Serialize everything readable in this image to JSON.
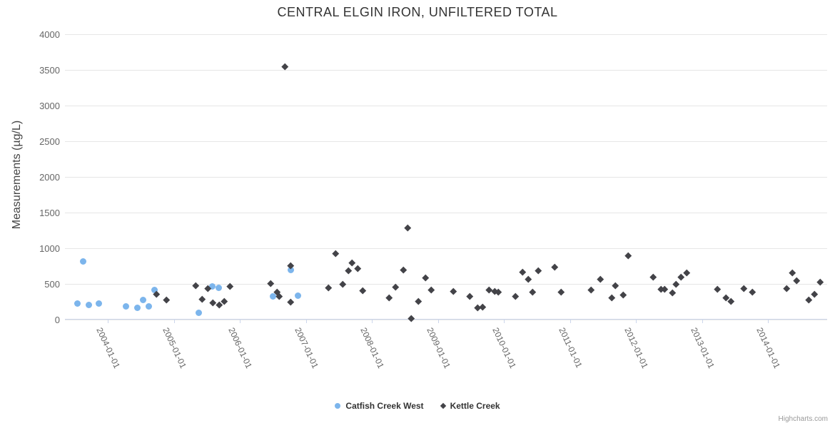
{
  "credit": "Highcharts.com",
  "colors": {
    "catfish_creek_west": "#7cb5ec",
    "kettle_creek": "#434348",
    "grid": "#e6e6e6",
    "axis_line": "#ccd6eb",
    "axis_label": "#666666",
    "title": "#333333",
    "legend_text": "#333333",
    "credit_text": "#999999",
    "background": "#ffffff"
  },
  "chart_data": {
    "type": "scatter",
    "title": "CENTRAL ELGIN IRON, UNFILTERED TOTAL",
    "xlabel": "",
    "ylabel": "Measurements (µg/L)",
    "ylim": [
      0,
      4000
    ],
    "yticks": [
      0,
      500,
      1000,
      1500,
      2000,
      2500,
      3000,
      3500,
      4000
    ],
    "x_tick_labels": [
      "2004-01-01",
      "2005-01-01",
      "2006-01-01",
      "2007-01-01",
      "2008-01-01",
      "2009-01-01",
      "2010-01-01",
      "2011-01-01",
      "2012-01-01",
      "2013-01-01",
      "2014-01-01"
    ],
    "x_tick_years": [
      2004,
      2005,
      2006,
      2007,
      2008,
      2009,
      2010,
      2011,
      2012,
      2013,
      2014
    ],
    "xlim_years": [
      2003.35,
      2014.95
    ],
    "grid": true,
    "legend_position": "bottom-center",
    "series": [
      {
        "name": "Catfish Creek West",
        "color": "#7cb5ec",
        "marker": "circle",
        "points": [
          [
            2003.54,
            230
          ],
          [
            2003.63,
            820
          ],
          [
            2003.71,
            205
          ],
          [
            2003.86,
            230
          ],
          [
            2004.28,
            190
          ],
          [
            2004.45,
            170
          ],
          [
            2004.54,
            280
          ],
          [
            2004.62,
            185
          ],
          [
            2004.71,
            420
          ],
          [
            2005.38,
            100
          ],
          [
            2005.58,
            470
          ],
          [
            2005.68,
            450
          ],
          [
            2006.5,
            330
          ],
          [
            2006.77,
            700
          ],
          [
            2006.88,
            340
          ]
        ]
      },
      {
        "name": "Kettle Creek",
        "color": "#434348",
        "marker": "diamond",
        "points": [
          [
            2004.74,
            360
          ],
          [
            2004.89,
            275
          ],
          [
            2005.33,
            475
          ],
          [
            2005.43,
            285
          ],
          [
            2005.52,
            440
          ],
          [
            2005.59,
            233
          ],
          [
            2005.69,
            205
          ],
          [
            2005.77,
            255
          ],
          [
            2005.85,
            463
          ],
          [
            2006.47,
            510
          ],
          [
            2006.56,
            390
          ],
          [
            2006.6,
            323
          ],
          [
            2006.68,
            3550
          ],
          [
            2006.77,
            760
          ],
          [
            2006.77,
            250
          ],
          [
            2007.34,
            450
          ],
          [
            2007.45,
            930
          ],
          [
            2007.56,
            500
          ],
          [
            2007.65,
            690
          ],
          [
            2007.7,
            800
          ],
          [
            2007.79,
            720
          ],
          [
            2007.86,
            405
          ],
          [
            2008.26,
            310
          ],
          [
            2008.36,
            455
          ],
          [
            2008.48,
            700
          ],
          [
            2008.54,
            1290
          ],
          [
            2008.6,
            20
          ],
          [
            2008.7,
            255
          ],
          [
            2008.81,
            585
          ],
          [
            2008.9,
            420
          ],
          [
            2009.23,
            400
          ],
          [
            2009.48,
            330
          ],
          [
            2009.6,
            170
          ],
          [
            2009.68,
            178
          ],
          [
            2009.78,
            415
          ],
          [
            2009.86,
            398
          ],
          [
            2009.92,
            385
          ],
          [
            2010.18,
            327
          ],
          [
            2010.28,
            667
          ],
          [
            2010.37,
            567
          ],
          [
            2010.43,
            387
          ],
          [
            2010.52,
            687
          ],
          [
            2010.77,
            733
          ],
          [
            2010.87,
            390
          ],
          [
            2011.32,
            420
          ],
          [
            2011.46,
            567
          ],
          [
            2011.63,
            310
          ],
          [
            2011.69,
            473
          ],
          [
            2011.81,
            350
          ],
          [
            2011.88,
            895
          ],
          [
            2012.26,
            600
          ],
          [
            2012.38,
            423
          ],
          [
            2012.44,
            423
          ],
          [
            2012.55,
            377
          ],
          [
            2012.61,
            493
          ],
          [
            2012.68,
            597
          ],
          [
            2012.77,
            657
          ],
          [
            2013.24,
            430
          ],
          [
            2013.37,
            303
          ],
          [
            2013.44,
            260
          ],
          [
            2013.63,
            433
          ],
          [
            2013.77,
            390
          ],
          [
            2014.28,
            440
          ],
          [
            2014.37,
            660
          ],
          [
            2014.44,
            547
          ],
          [
            2014.62,
            280
          ],
          [
            2014.71,
            353
          ],
          [
            2014.79,
            523
          ]
        ]
      }
    ]
  }
}
